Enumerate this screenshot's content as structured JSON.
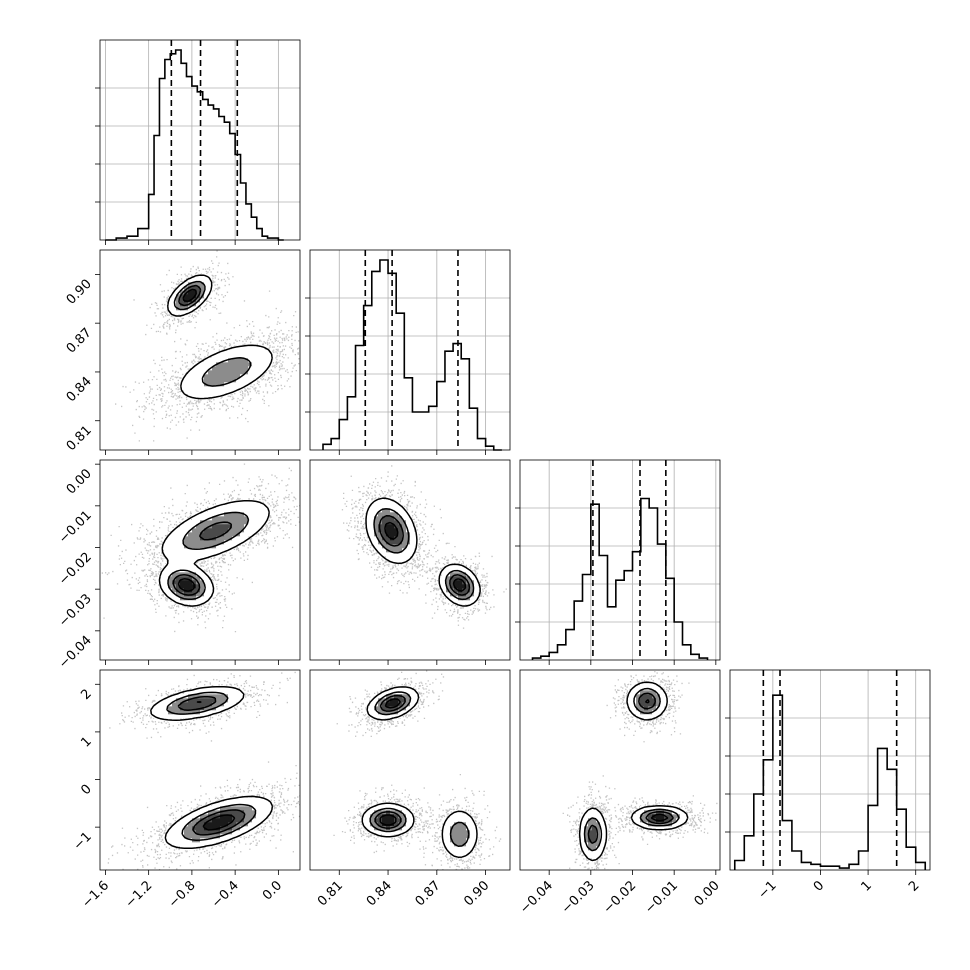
{
  "chart_data": {
    "type": "corner",
    "title": "",
    "grid": true,
    "colors": {
      "density": "#000000",
      "points": "#555555",
      "lines": "#000000",
      "grid": "#b0b0b0"
    },
    "parameters": [
      {
        "id": "p0",
        "label": "",
        "range": [
          -1.65,
          0.2
        ],
        "ticks": [
          -1.6,
          -1.2,
          -0.8,
          -0.4,
          0.0
        ],
        "tick_labels": [
          "−1.6",
          "−1.2",
          "−0.8",
          "−0.4",
          "0.0"
        ],
        "quantiles": [
          -0.99,
          -0.72,
          -0.38
        ]
      },
      {
        "id": "p1",
        "label": "",
        "range": [
          0.792,
          0.915
        ],
        "ticks": [
          0.81,
          0.84,
          0.87,
          0.9
        ],
        "tick_labels": [
          "0.81",
          "0.84",
          "0.87",
          "0.90"
        ],
        "quantiles": [
          0.826,
          0.8425,
          0.883
        ]
      },
      {
        "id": "p2",
        "label": "",
        "range": [
          -0.047,
          0.001
        ],
        "ticks": [
          -0.04,
          -0.03,
          -0.02,
          -0.01,
          0.0
        ],
        "tick_labels": [
          "−0.04",
          "−0.03",
          "−0.02",
          "−0.01",
          "0.00"
        ],
        "quantiles": [
          -0.0295,
          -0.0182,
          -0.012
        ]
      },
      {
        "id": "p3",
        "label": "",
        "range": [
          -1.9,
          2.3
        ],
        "ticks": [
          -1,
          0,
          1,
          2
        ],
        "tick_labels": [
          "−1",
          "0",
          "1",
          "2"
        ],
        "quantiles": [
          -1.2,
          -0.85,
          1.6
        ]
      }
    ],
    "histograms": [
      {
        "param": "p0",
        "bin_edges": [
          -1.6,
          -1.5,
          -1.4,
          -1.3,
          -1.2,
          -1.15,
          -1.1,
          -1.05,
          -1.0,
          -0.95,
          -0.9,
          -0.85,
          -0.8,
          -0.75,
          -0.7,
          -0.65,
          -0.6,
          -0.55,
          -0.5,
          -0.45,
          -0.4,
          -0.35,
          -0.3,
          -0.25,
          -0.2,
          -0.15,
          -0.1,
          -0.05,
          0.0,
          0.05
        ],
        "counts": [
          0.0,
          0.01,
          0.02,
          0.06,
          0.24,
          0.55,
          0.85,
          0.95,
          0.98,
          1.0,
          0.93,
          0.86,
          0.81,
          0.78,
          0.74,
          0.71,
          0.69,
          0.65,
          0.62,
          0.56,
          0.45,
          0.3,
          0.19,
          0.12,
          0.06,
          0.02,
          0.01,
          0.01,
          0.0
        ]
      },
      {
        "param": "p1",
        "bin_edges": [
          0.8,
          0.805,
          0.81,
          0.815,
          0.82,
          0.825,
          0.83,
          0.835,
          0.84,
          0.845,
          0.85,
          0.855,
          0.86,
          0.865,
          0.87,
          0.875,
          0.88,
          0.885,
          0.89,
          0.895,
          0.9,
          0.905,
          0.91
        ],
        "counts": [
          0.03,
          0.06,
          0.16,
          0.28,
          0.55,
          0.76,
          0.94,
          1.0,
          0.93,
          0.72,
          0.38,
          0.2,
          0.2,
          0.23,
          0.36,
          0.52,
          0.56,
          0.48,
          0.22,
          0.06,
          0.02,
          0.0
        ]
      },
      {
        "param": "p2",
        "bin_edges": [
          -0.044,
          -0.042,
          -0.04,
          -0.038,
          -0.036,
          -0.034,
          -0.032,
          -0.03,
          -0.028,
          -0.026,
          -0.024,
          -0.022,
          -0.02,
          -0.018,
          -0.016,
          -0.014,
          -0.012,
          -0.01,
          -0.008,
          -0.006,
          -0.004,
          -0.002
        ],
        "counts": [
          0.01,
          0.02,
          0.04,
          0.08,
          0.16,
          0.31,
          0.45,
          0.82,
          0.55,
          0.28,
          0.42,
          0.47,
          0.57,
          0.85,
          0.8,
          0.61,
          0.43,
          0.2,
          0.08,
          0.03,
          0.01
        ]
      },
      {
        "param": "p3",
        "bin_edges": [
          -1.8,
          -1.6,
          -1.4,
          -1.2,
          -1.0,
          -0.8,
          -0.6,
          -0.4,
          -0.2,
          0.0,
          0.2,
          0.4,
          0.6,
          0.8,
          1.0,
          1.2,
          1.4,
          1.6,
          1.8,
          2.0,
          2.2
        ],
        "counts": [
          0.05,
          0.18,
          0.4,
          0.58,
          0.92,
          0.26,
          0.1,
          0.04,
          0.03,
          0.02,
          0.02,
          0.01,
          0.03,
          0.1,
          0.34,
          0.64,
          0.53,
          0.32,
          0.12,
          0.04
        ]
      }
    ],
    "density_modes": [
      {
        "pair": [
          "p0",
          "p1"
        ],
        "modes": [
          {
            "cx": -0.82,
            "cy": 0.887,
            "sx": 0.09,
            "sy": 0.0055,
            "rho": 0.55,
            "w": 0.35
          },
          {
            "cx": -0.48,
            "cy": 0.84,
            "sx": 0.22,
            "sy": 0.0085,
            "rho": 0.55,
            "w": 0.65
          }
        ]
      },
      {
        "pair": [
          "p0",
          "p2"
        ],
        "modes": [
          {
            "cx": -0.58,
            "cy": -0.016,
            "sx": 0.24,
            "sy": 0.0035,
            "rho": 0.6,
            "w": 0.65
          },
          {
            "cx": -0.85,
            "cy": -0.029,
            "sx": 0.11,
            "sy": 0.0022,
            "rho": -0.2,
            "w": 0.35
          }
        ]
      },
      {
        "pair": [
          "p1",
          "p2"
        ],
        "modes": [
          {
            "cx": 0.842,
            "cy": -0.016,
            "sx": 0.007,
            "sy": 0.0035,
            "rho": -0.3,
            "w": 0.65
          },
          {
            "cx": 0.884,
            "cy": -0.029,
            "sx": 0.0055,
            "sy": 0.0022,
            "rho": -0.25,
            "w": 0.35
          }
        ]
      },
      {
        "pair": [
          "p0",
          "p3"
        ],
        "modes": [
          {
            "cx": -0.75,
            "cy": 1.6,
            "sx": 0.2,
            "sy": 0.16,
            "rho": 0.5,
            "w": 0.35
          },
          {
            "cx": -0.55,
            "cy": -0.9,
            "sx": 0.22,
            "sy": 0.24,
            "rho": 0.6,
            "w": 0.65
          }
        ]
      },
      {
        "pair": [
          "p1",
          "p3"
        ],
        "modes": [
          {
            "cx": 0.843,
            "cy": 1.6,
            "sx": 0.007,
            "sy": 0.15,
            "rho": 0.4,
            "w": 0.35
          },
          {
            "cx": 0.84,
            "cy": -0.85,
            "sx": 0.007,
            "sy": 0.15,
            "rho": 0.0,
            "w": 0.4
          },
          {
            "cx": 0.884,
            "cy": -1.15,
            "sx": 0.0055,
            "sy": 0.25,
            "rho": 0.0,
            "w": 0.25
          }
        ]
      },
      {
        "pair": [
          "p2",
          "p3"
        ],
        "modes": [
          {
            "cx": -0.0165,
            "cy": 1.65,
            "sx": 0.0022,
            "sy": 0.18,
            "rho": 0.0,
            "w": 0.35
          },
          {
            "cx": -0.0295,
            "cy": -1.15,
            "sx": 0.0015,
            "sy": 0.26,
            "rho": 0.0,
            "w": 0.3
          },
          {
            "cx": -0.0135,
            "cy": -0.8,
            "sx": 0.003,
            "sy": 0.11,
            "rho": 0.0,
            "w": 0.35
          }
        ]
      }
    ]
  }
}
